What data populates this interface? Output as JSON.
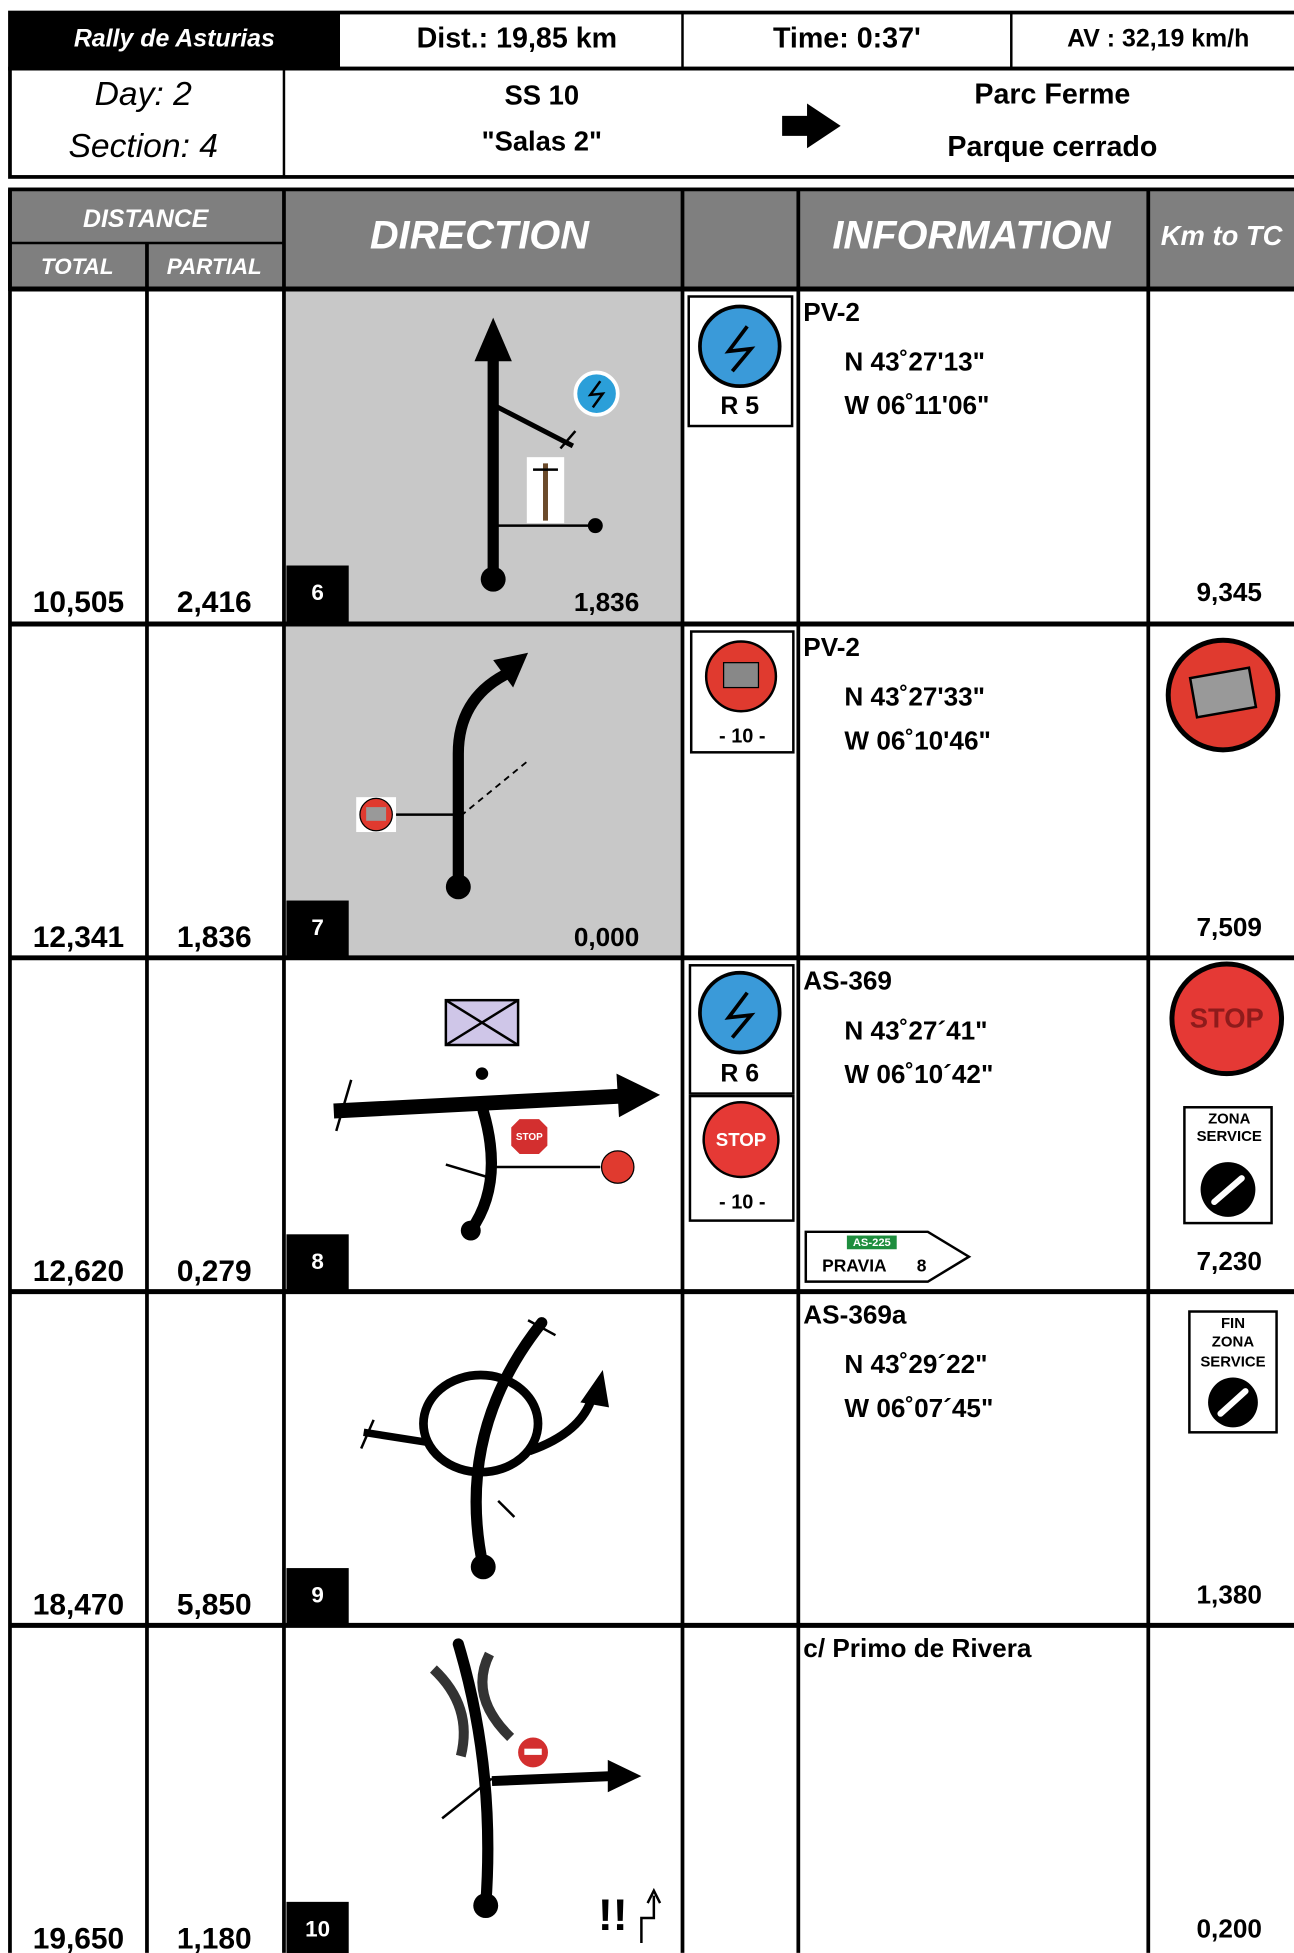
{
  "header": {
    "event": "Rally de Asturias",
    "distance": "Dist.: 19,85 km",
    "time": "Time: 0:37'",
    "average": "AV : 32,19 km/h",
    "day": "Day:  2",
    "section": "Section: 4",
    "stage": "SS 10",
    "stage_name": "\"Salas 2\"",
    "destination": [
      "Parc Ferme",
      "Parque cerrado"
    ]
  },
  "table": {
    "distance": "DISTANCE",
    "total": "TOTAL",
    "partial": "PARTIAL",
    "direction": "DIRECTION",
    "information": "INFORMATION",
    "km_to_tc": "Km to TC",
    "rows": [
      {
        "total": "10,505",
        "partial": "2,416",
        "number": "6",
        "next": "1,836",
        "road": "PV-2",
        "lat": "N 43˚27'13\"",
        "lon": "W 06˚11'06\"",
        "km_to_tc": "9,345",
        "sign_labels": [
          "R 5"
        ]
      },
      {
        "total": "12,341",
        "partial": "1,836",
        "number": "7",
        "next": "0,000",
        "road": "PV-2",
        "lat": "N 43˚27'33\"",
        "lon": "W 06˚10'46\"",
        "km_to_tc": "7,509",
        "sign_labels": [
          "- 10 -"
        ]
      },
      {
        "total": "12,620",
        "partial": "0,279",
        "number": "8",
        "road": "AS-369",
        "lat": "N 43˚27´41\"",
        "lon": "W 06˚10´42\"",
        "km_to_tc": "7,230",
        "sign_labels": [
          "R 6",
          "STOP",
          "- 10 -"
        ],
        "diagram_labels": [
          "STOP"
        ],
        "road_sign": [
          "AS-225",
          "PRAVIA",
          "8"
        ],
        "tc_labels": [
          "STOP",
          "ZONA",
          "SERVICE"
        ]
      },
      {
        "total": "18,470",
        "partial": "5,850",
        "number": "9",
        "road": "AS-369a",
        "lat": "N 43˚29´22\"",
        "lon": "W 06˚07´45\"",
        "km_to_tc": "1,380",
        "tc_labels": [
          "FIN",
          "ZONA",
          "SERVICE"
        ]
      },
      {
        "total": "19,650",
        "partial": "1,180",
        "number": "10",
        "road": "c/ Primo de Rivera",
        "km_to_tc": "0,200",
        "diagram_labels": [
          "!!"
        ]
      }
    ]
  }
}
